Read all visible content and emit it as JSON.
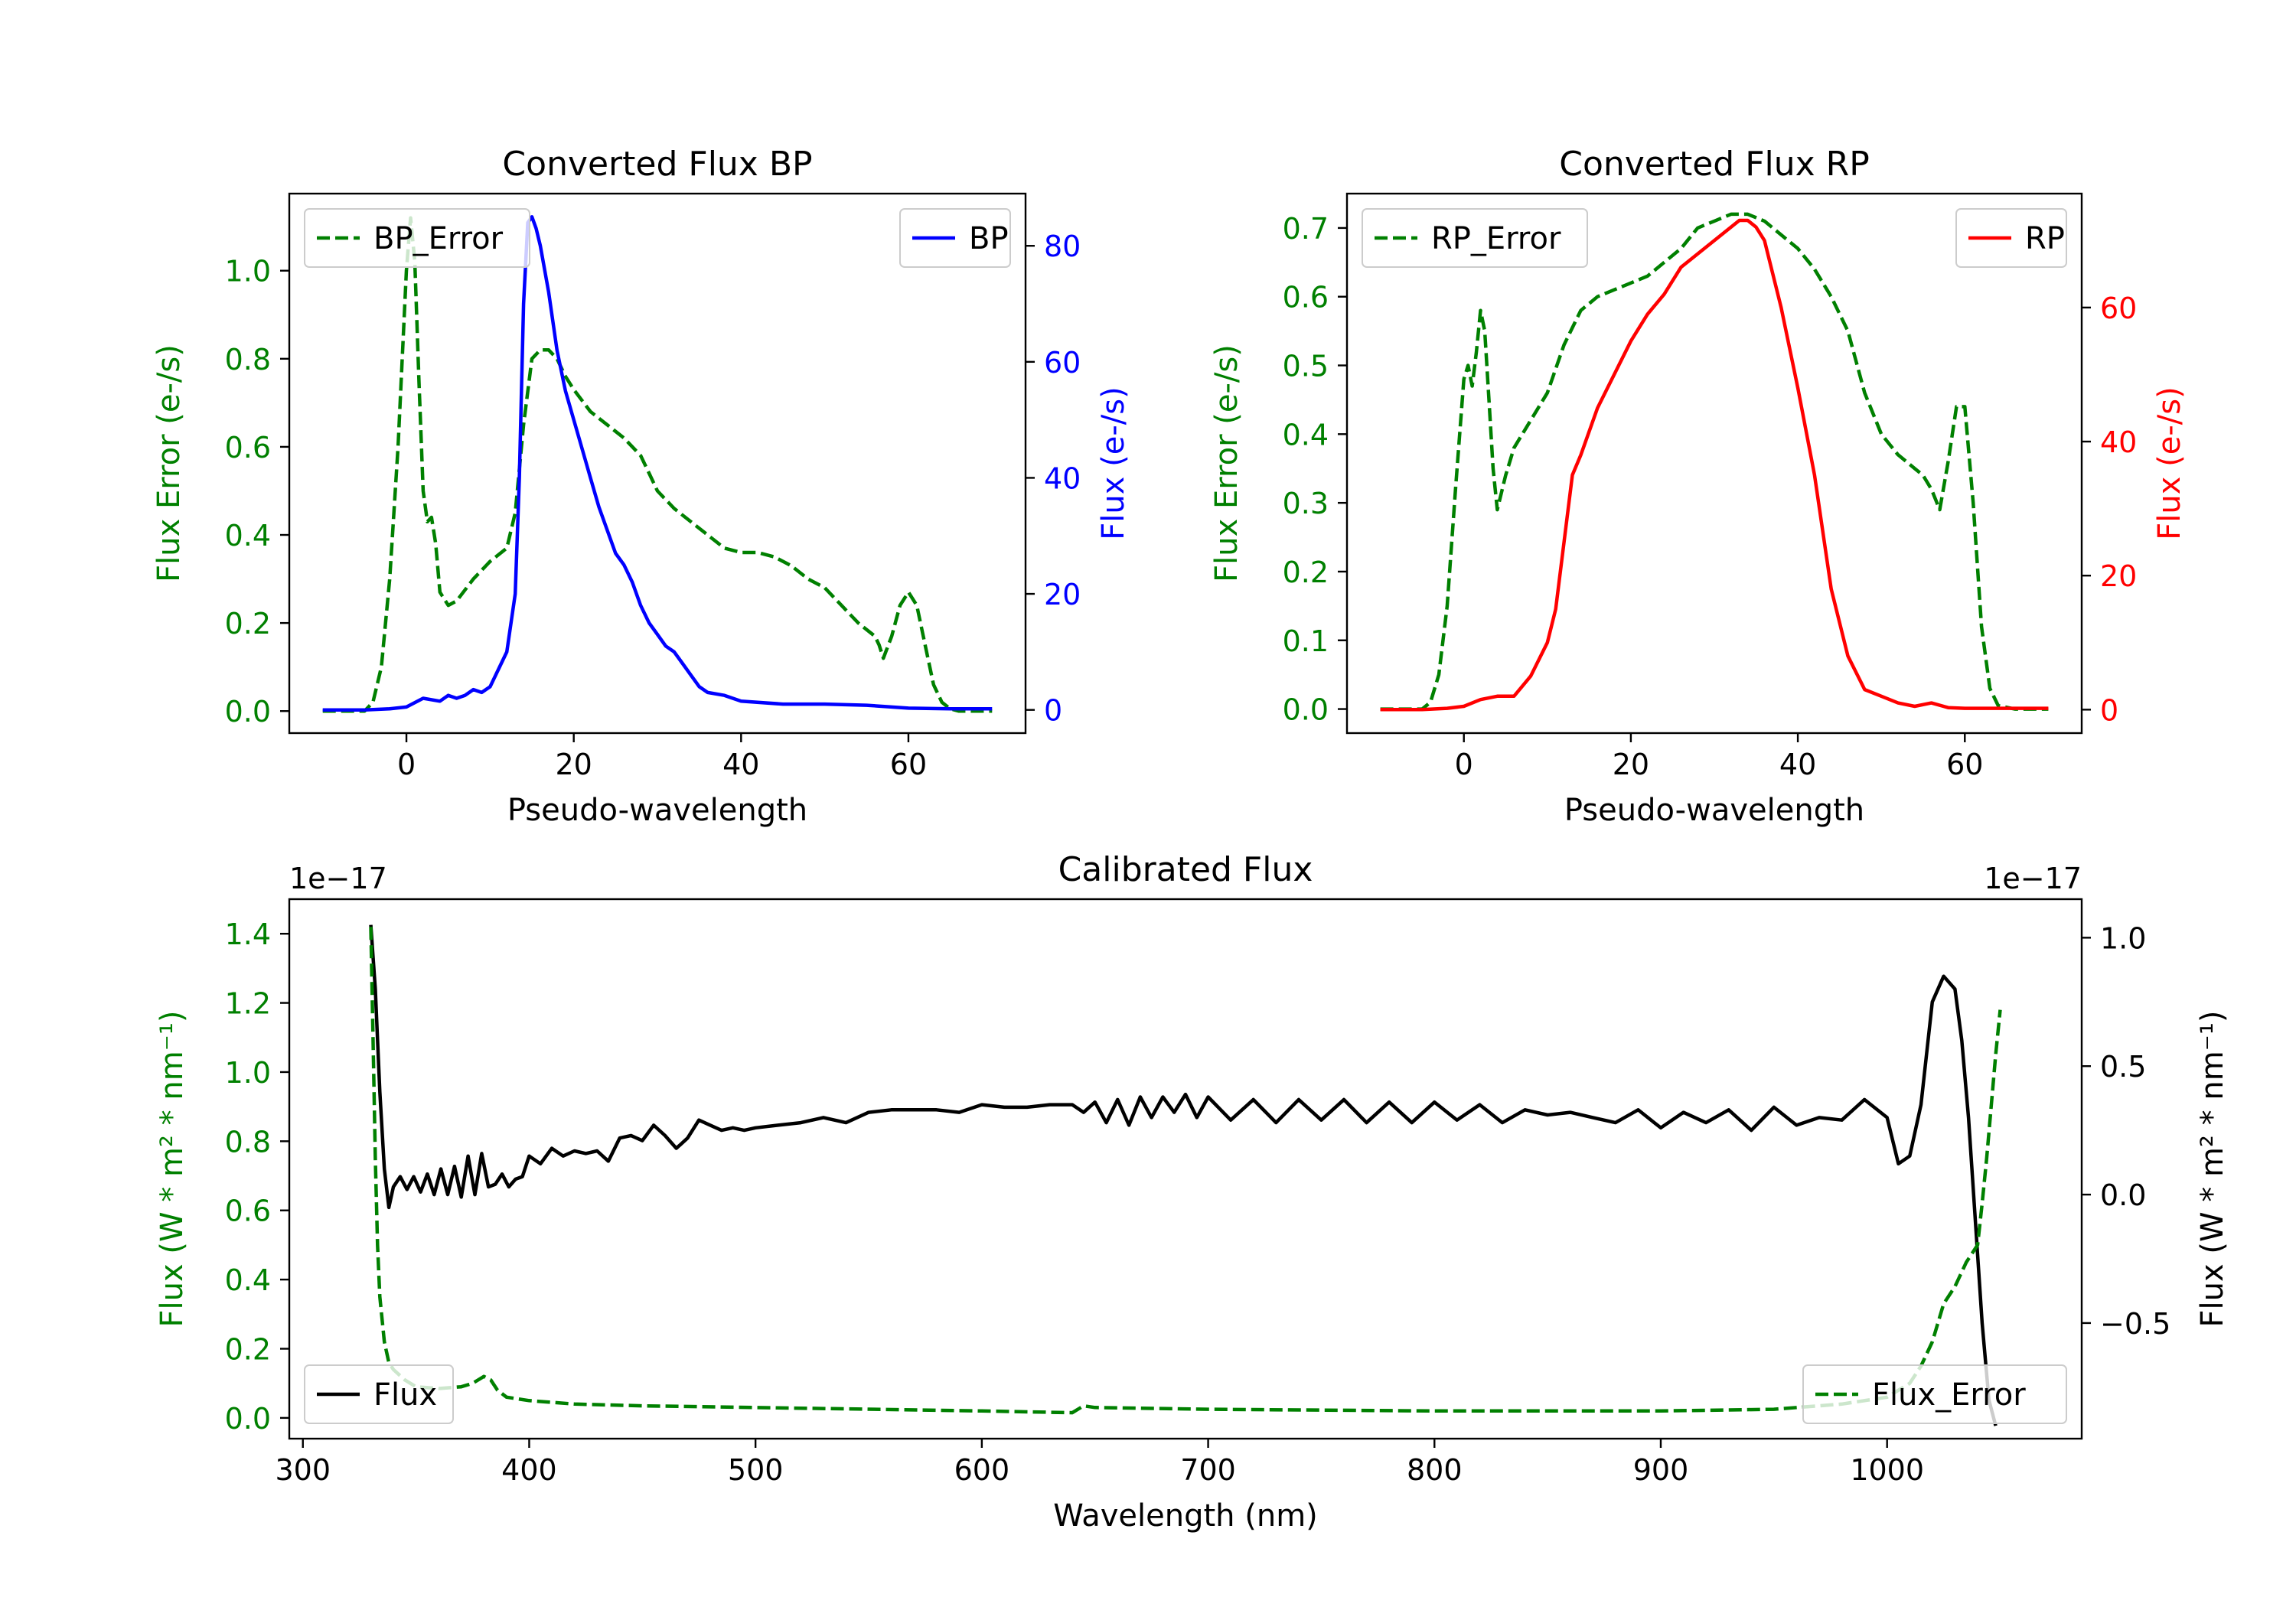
{
  "chart_data": [
    {
      "type": "line",
      "title": "Converted Flux BP",
      "xlabel": "Pseudo-wavelength",
      "ylabel_left": "Flux Error (e-/s)",
      "ylabel_right": "Flux (e-/s)",
      "xlim": [
        -14,
        74
      ],
      "ylim_left": [
        -0.05,
        1.175
      ],
      "ylim_right": [
        -4,
        89
      ],
      "xticks": [
        0,
        20,
        40,
        60
      ],
      "yticks_left": [
        0.0,
        0.2,
        0.4,
        0.6,
        0.8,
        1.0
      ],
      "yticks_left_labels": [
        "0.0",
        "0.2",
        "0.4",
        "0.6",
        "0.8",
        "1.0"
      ],
      "yticks_right": [
        0,
        20,
        40,
        60,
        80
      ],
      "left_axis_color": "#008000",
      "right_axis_color": "#0000ff",
      "series": [
        {
          "name": "BP_Error",
          "axis": "left",
          "color": "#008000",
          "dash": true,
          "x": [
            -10,
            -5,
            -4,
            -3,
            -2,
            -1,
            0,
            0.5,
            1,
            1.5,
            2,
            2.5,
            3,
            3.5,
            4,
            5,
            6,
            8,
            10,
            12,
            13,
            14,
            15,
            16,
            17,
            18,
            19,
            20,
            22,
            24,
            26,
            28,
            29,
            30,
            32,
            34,
            36,
            38,
            40,
            42,
            44,
            46,
            48,
            50,
            52,
            54,
            56,
            56.5,
            57,
            58,
            59,
            60,
            61,
            62,
            63,
            64,
            65,
            66,
            68,
            70
          ],
          "y": [
            0.0,
            0.0,
            0.02,
            0.1,
            0.3,
            0.6,
            1.0,
            1.12,
            1.02,
            0.75,
            0.5,
            0.43,
            0.44,
            0.38,
            0.27,
            0.24,
            0.25,
            0.3,
            0.34,
            0.37,
            0.45,
            0.65,
            0.8,
            0.82,
            0.82,
            0.8,
            0.76,
            0.73,
            0.68,
            0.65,
            0.62,
            0.58,
            0.54,
            0.5,
            0.46,
            0.43,
            0.4,
            0.37,
            0.36,
            0.36,
            0.35,
            0.33,
            0.3,
            0.28,
            0.24,
            0.2,
            0.17,
            0.15,
            0.12,
            0.17,
            0.24,
            0.27,
            0.24,
            0.15,
            0.06,
            0.02,
            0.005,
            0.0,
            0.0,
            0.0
          ]
        },
        {
          "name": "BP",
          "axis": "right",
          "color": "#0000ff",
          "dash": false,
          "x": [
            -10,
            -5,
            -2,
            0,
            2,
            4,
            5,
            6,
            7,
            8,
            9,
            10,
            11,
            12,
            13,
            13.5,
            14,
            14.5,
            15,
            15.5,
            16,
            17,
            18,
            19,
            20,
            21,
            22,
            23,
            24,
            25,
            26,
            27,
            28,
            29,
            30,
            31,
            32,
            33,
            34,
            35,
            36,
            38,
            40,
            45,
            50,
            55,
            60,
            65,
            70
          ],
          "y": [
            0,
            0,
            0.2,
            0.5,
            2,
            1.5,
            2.5,
            2,
            2.5,
            3.5,
            3,
            4,
            7,
            10,
            20,
            40,
            70,
            84,
            85,
            83,
            80,
            72,
            62,
            55,
            50,
            45,
            40,
            35,
            31,
            27,
            25,
            22,
            18,
            15,
            13,
            11,
            10,
            8,
            6,
            4,
            3,
            2.5,
            1.5,
            1,
            1,
            0.8,
            0.3,
            0.2,
            0.2
          ]
        }
      ],
      "legend": [
        {
          "label": "BP_Error",
          "position": "upper-left"
        },
        {
          "label": "BP",
          "position": "upper-right"
        }
      ]
    },
    {
      "type": "line",
      "title": "Converted Flux RP",
      "xlabel": "Pseudo-wavelength",
      "ylabel_left": "Flux Error (e-/s)",
      "ylabel_right": "Flux (e-/s)",
      "xlim": [
        -14,
        74
      ],
      "ylim_left": [
        -0.035,
        0.75
      ],
      "ylim_right": [
        -3.5,
        77
      ],
      "xticks": [
        0,
        20,
        40,
        60
      ],
      "yticks_left": [
        0.0,
        0.1,
        0.2,
        0.3,
        0.4,
        0.5,
        0.6,
        0.7
      ],
      "yticks_left_labels": [
        "0.0",
        "0.1",
        "0.2",
        "0.3",
        "0.4",
        "0.5",
        "0.6",
        "0.7"
      ],
      "yticks_right": [
        0,
        20,
        40,
        60
      ],
      "left_axis_color": "#008000",
      "right_axis_color": "#ff0000",
      "series": [
        {
          "name": "RP_Error",
          "axis": "left",
          "color": "#008000",
          "dash": true,
          "x": [
            -10,
            -5,
            -4,
            -3,
            -2,
            -1,
            0,
            0.5,
            1,
            1.5,
            2,
            2.5,
            3,
            3.5,
            4,
            5,
            6,
            8,
            10,
            12,
            14,
            16,
            18,
            20,
            22,
            24,
            26,
            28,
            30,
            32,
            33,
            34,
            36,
            38,
            40,
            42,
            44,
            46,
            48,
            50,
            52,
            54,
            55,
            56,
            57,
            58,
            59,
            60,
            61,
            62,
            63,
            64,
            66,
            70
          ],
          "y": [
            0.0,
            0.0,
            0.01,
            0.05,
            0.15,
            0.32,
            0.48,
            0.5,
            0.47,
            0.52,
            0.58,
            0.55,
            0.45,
            0.35,
            0.29,
            0.34,
            0.38,
            0.42,
            0.46,
            0.53,
            0.58,
            0.6,
            0.61,
            0.62,
            0.63,
            0.65,
            0.67,
            0.7,
            0.71,
            0.72,
            0.72,
            0.72,
            0.71,
            0.69,
            0.67,
            0.64,
            0.6,
            0.55,
            0.46,
            0.4,
            0.37,
            0.35,
            0.34,
            0.32,
            0.29,
            0.36,
            0.44,
            0.44,
            0.3,
            0.12,
            0.03,
            0.005,
            0.0,
            0.0
          ]
        },
        {
          "name": "RP",
          "axis": "right",
          "color": "#ff0000",
          "dash": false,
          "x": [
            -10,
            -5,
            -2,
            0,
            2,
            4,
            6,
            8,
            10,
            11,
            12,
            13,
            14,
            16,
            18,
            20,
            22,
            24,
            26,
            28,
            30,
            32,
            33,
            34,
            35,
            36,
            38,
            40,
            42,
            44,
            46,
            48,
            50,
            52,
            54,
            56,
            58,
            60,
            62,
            70
          ],
          "y": [
            0,
            0,
            0.2,
            0.5,
            1.5,
            2,
            2,
            5,
            10,
            15,
            25,
            35,
            38,
            45,
            50,
            55,
            59,
            62,
            66,
            68,
            70,
            72,
            73,
            73,
            72,
            70,
            60,
            48,
            35,
            18,
            8,
            3,
            2,
            1,
            0.5,
            1,
            0.3,
            0.2,
            0.2,
            0.2
          ]
        }
      ],
      "legend": [
        {
          "label": "RP_Error",
          "position": "upper-left"
        },
        {
          "label": "RP",
          "position": "upper-right"
        }
      ]
    },
    {
      "type": "line",
      "title": "Calibrated Flux",
      "xlabel": "Wavelength (nm)",
      "ylabel_left": "Flux (W * m² * nm⁻¹)",
      "ylabel_right": "Flux (W * m² * nm⁻¹)",
      "offset_left": "1e−17",
      "offset_right": "1e−17",
      "xlim": [
        294,
        1086
      ],
      "ylim_left": [
        -0.06,
        1.5
      ],
      "ylim_right": [
        -0.95,
        1.15
      ],
      "xticks": [
        300,
        400,
        500,
        600,
        700,
        800,
        900,
        1000
      ],
      "yticks_left": [
        0.0,
        0.2,
        0.4,
        0.6,
        0.8,
        1.0,
        1.2,
        1.4
      ],
      "yticks_left_labels": [
        "0.0",
        "0.2",
        "0.4",
        "0.6",
        "0.8",
        "1.0",
        "1.2",
        "1.4"
      ],
      "yticks_right": [
        -0.5,
        0.0,
        0.5,
        1.0
      ],
      "yticks_right_labels": [
        "−0.5",
        "0.0",
        "0.5",
        "1.0"
      ],
      "left_axis_color": "#008000",
      "right_axis_color": "#000000",
      "series": [
        {
          "name": "Flux",
          "axis": "right",
          "color": "#000000",
          "dash": false,
          "x": [
            330,
            332,
            334,
            336,
            338,
            340,
            343,
            346,
            349,
            352,
            355,
            358,
            361,
            364,
            367,
            370,
            373,
            376,
            379,
            382,
            385,
            388,
            391,
            394,
            397,
            400,
            405,
            410,
            415,
            420,
            425,
            430,
            435,
            440,
            445,
            450,
            455,
            460,
            465,
            470,
            475,
            480,
            485,
            490,
            495,
            500,
            510,
            520,
            530,
            540,
            550,
            560,
            570,
            580,
            590,
            600,
            610,
            620,
            630,
            640,
            645,
            650,
            655,
            660,
            665,
            670,
            675,
            680,
            685,
            690,
            695,
            700,
            710,
            720,
            730,
            740,
            750,
            760,
            770,
            780,
            790,
            800,
            810,
            820,
            830,
            840,
            850,
            860,
            870,
            880,
            890,
            900,
            910,
            920,
            930,
            940,
            950,
            960,
            970,
            980,
            990,
            1000,
            1005,
            1010,
            1015,
            1020,
            1025,
            1030,
            1033,
            1036,
            1039,
            1042,
            1045,
            1048
          ],
          "y": [
            1.05,
            0.8,
            0.4,
            0.1,
            -0.05,
            0.03,
            0.07,
            0.02,
            0.07,
            0.01,
            0.08,
            0.0,
            0.1,
            0.0,
            0.11,
            -0.01,
            0.15,
            0.0,
            0.16,
            0.03,
            0.04,
            0.08,
            0.03,
            0.06,
            0.07,
            0.15,
            0.12,
            0.18,
            0.15,
            0.17,
            0.16,
            0.17,
            0.13,
            0.22,
            0.23,
            0.21,
            0.27,
            0.23,
            0.18,
            0.22,
            0.29,
            0.27,
            0.25,
            0.26,
            0.25,
            0.26,
            0.27,
            0.28,
            0.3,
            0.28,
            0.32,
            0.33,
            0.33,
            0.33,
            0.32,
            0.35,
            0.34,
            0.34,
            0.35,
            0.35,
            0.32,
            0.36,
            0.28,
            0.37,
            0.27,
            0.38,
            0.3,
            0.38,
            0.32,
            0.39,
            0.3,
            0.38,
            0.29,
            0.37,
            0.28,
            0.37,
            0.29,
            0.37,
            0.28,
            0.36,
            0.28,
            0.36,
            0.29,
            0.35,
            0.28,
            0.33,
            0.31,
            0.32,
            0.3,
            0.28,
            0.33,
            0.26,
            0.32,
            0.28,
            0.33,
            0.25,
            0.34,
            0.27,
            0.3,
            0.29,
            0.37,
            0.3,
            0.12,
            0.15,
            0.35,
            0.75,
            0.85,
            0.8,
            0.6,
            0.3,
            -0.1,
            -0.5,
            -0.8,
            -0.9
          ]
        },
        {
          "name": "Flux_Error",
          "axis": "left",
          "color": "#008000",
          "dash": true,
          "x": [
            330,
            331,
            332,
            333,
            334,
            336,
            338,
            340,
            345,
            350,
            360,
            370,
            375,
            380,
            383,
            386,
            390,
            400,
            420,
            450,
            500,
            600,
            640,
            645,
            650,
            700,
            800,
            900,
            950,
            980,
            1000,
            1010,
            1015,
            1020,
            1025,
            1030,
            1035,
            1040,
            1042,
            1044,
            1046,
            1048,
            1050
          ],
          "y": [
            1.42,
            1.1,
            0.75,
            0.5,
            0.35,
            0.22,
            0.16,
            0.14,
            0.11,
            0.09,
            0.085,
            0.09,
            0.1,
            0.12,
            0.11,
            0.08,
            0.06,
            0.05,
            0.04,
            0.035,
            0.03,
            0.02,
            0.015,
            0.035,
            0.03,
            0.025,
            0.02,
            0.02,
            0.025,
            0.04,
            0.06,
            0.1,
            0.15,
            0.22,
            0.33,
            0.38,
            0.45,
            0.5,
            0.62,
            0.75,
            0.9,
            1.05,
            1.18
          ]
        }
      ],
      "legend": [
        {
          "label": "Flux",
          "position": "lower-left"
        },
        {
          "label": "Flux_Error",
          "position": "lower-right"
        }
      ]
    }
  ]
}
